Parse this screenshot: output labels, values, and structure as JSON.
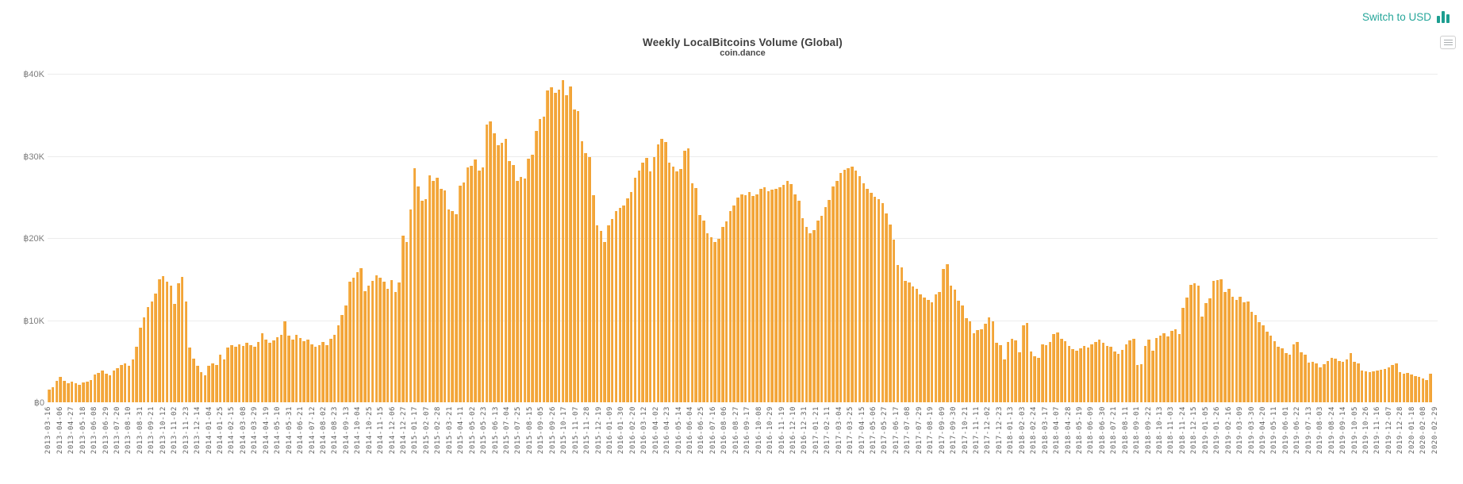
{
  "header": {
    "title": "Weekly LocalBitcoins Volume (Global)",
    "subtitle": "coin.dance",
    "switch_link_label": "Switch to USD"
  },
  "colors": {
    "accent_teal": "#26a69a",
    "bar_orange": "#f4a63a",
    "gridline": "#ececec",
    "title_text": "#3e3e3e",
    "axis_text": "#6b6b6b"
  },
  "icons": {
    "switch_link_icon": "bar-chart-icon",
    "context_menu_icon": "hamburger-menu-icon"
  },
  "chart_data": {
    "type": "bar",
    "title": "Weekly LocalBitcoins Volume (Global)",
    "subtitle": "coin.dance",
    "xlabel": "",
    "ylabel": "",
    "ylim": [
      0,
      40000
    ],
    "grid": "horizontal",
    "legend": "none",
    "currency_symbol": "฿",
    "y_tick_values": [
      0,
      10000,
      20000,
      30000,
      40000
    ],
    "y_tick_labels": [
      "฿0",
      "฿10K",
      "฿20K",
      "฿30K",
      "฿40K"
    ],
    "x_tick_every_n_bars": 3,
    "x_tick_labels": [
      "2013-03-16",
      "2013-04-06",
      "2013-04-27",
      "2013-05-18",
      "2013-06-08",
      "2013-06-29",
      "2013-07-20",
      "2013-08-10",
      "2013-08-31",
      "2013-09-21",
      "2013-10-12",
      "2013-11-02",
      "2013-11-23",
      "2013-12-14",
      "2014-01-04",
      "2014-01-25",
      "2014-02-15",
      "2014-03-08",
      "2014-03-29",
      "2014-04-19",
      "2014-05-10",
      "2014-05-31",
      "2014-06-21",
      "2014-07-12",
      "2014-08-02",
      "2014-08-23",
      "2014-09-13",
      "2014-10-04",
      "2014-10-25",
      "2014-11-15",
      "2014-12-06",
      "2014-12-27",
      "2015-01-17",
      "2015-02-07",
      "2015-02-28",
      "2015-03-21",
      "2015-04-11",
      "2015-05-02",
      "2015-05-23",
      "2015-06-13",
      "2015-07-04",
      "2015-07-25",
      "2015-08-15",
      "2015-09-05",
      "2015-09-26",
      "2015-10-17",
      "2015-11-07",
      "2015-11-28",
      "2015-12-19",
      "2016-01-09",
      "2016-01-30",
      "2016-02-20",
      "2016-03-12",
      "2016-04-02",
      "2016-04-23",
      "2016-05-14",
      "2016-06-04",
      "2016-06-25",
      "2016-07-16",
      "2016-08-06",
      "2016-08-27",
      "2016-09-17",
      "2016-10-08",
      "2016-10-29",
      "2016-11-19",
      "2016-12-10",
      "2016-12-31",
      "2017-01-21",
      "2017-02-11",
      "2017-03-04",
      "2017-03-25",
      "2017-04-15",
      "2017-05-06",
      "2017-05-27",
      "2017-06-17",
      "2017-07-08",
      "2017-07-29",
      "2017-08-19",
      "2017-09-09",
      "2017-09-30",
      "2017-10-21",
      "2017-11-11",
      "2017-12-02",
      "2017-12-23",
      "2018-01-13",
      "2018-02-03",
      "2018-02-24",
      "2018-03-17",
      "2018-04-07",
      "2018-04-28",
      "2018-05-19",
      "2018-06-09",
      "2018-06-30",
      "2018-07-21",
      "2018-08-11",
      "2018-09-01",
      "2018-09-22",
      "2018-10-13",
      "2018-11-03",
      "2018-11-24",
      "2018-12-15",
      "2019-01-05",
      "2019-01-26",
      "2019-02-16",
      "2019-03-09",
      "2019-03-30",
      "2019-04-20",
      "2019-05-11",
      "2019-06-01",
      "2019-06-22",
      "2019-07-13",
      "2019-08-03",
      "2019-08-24",
      "2019-09-14",
      "2019-10-05",
      "2019-10-26",
      "2019-11-16",
      "2019-12-07",
      "2019-12-28",
      "2020-01-18",
      "2020-02-08",
      "2020-02-29"
    ],
    "values_unit": "BTC per week",
    "values": [
      1500,
      1800,
      2600,
      3100,
      2600,
      2300,
      2500,
      2300,
      2100,
      2400,
      2500,
      2700,
      3400,
      3600,
      3900,
      3500,
      3300,
      3900,
      4200,
      4500,
      4700,
      4400,
      5200,
      6800,
      9100,
      10300,
      11600,
      12300,
      13200,
      15000,
      15400,
      14700,
      14200,
      12000,
      14500,
      15300,
      12300,
      6700,
      5300,
      4400,
      3700,
      3300,
      4400,
      4700,
      4500,
      5800,
      5200,
      6700,
      7000,
      6800,
      7100,
      6900,
      7200,
      7000,
      6800,
      7300,
      8400,
      7600,
      7200,
      7500,
      7900,
      8200,
      9900,
      8100,
      7600,
      8200,
      7800,
      7400,
      7600,
      7100,
      6800,
      7000,
      7300,
      7000,
      7700,
      8200,
      9400,
      10600,
      11800,
      14700,
      15200,
      15800,
      16300,
      13500,
      14200,
      14800,
      15500,
      15200,
      14700,
      13800,
      14900,
      13400,
      14600,
      20300,
      19500,
      23500,
      28500,
      26300,
      24500,
      24700,
      27600,
      27000,
      27300,
      26000,
      25800,
      23500,
      23300,
      22900,
      26400,
      26800,
      28600,
      28800,
      29600,
      28200,
      28600,
      33800,
      34200,
      32800,
      31300,
      31600,
      32100,
      29400,
      28900,
      27000,
      27400,
      27200,
      29700,
      30100,
      33000,
      34500,
      34800,
      38000,
      38400,
      37700,
      38100,
      39200,
      37400,
      38500,
      35700,
      35500,
      31800,
      30300,
      29900,
      25200,
      21500,
      20900,
      19500,
      21500,
      22300,
      23300,
      23700,
      24000,
      24800,
      25600,
      27300,
      28200,
      29200,
      29800,
      28100,
      29900,
      31400,
      32100,
      31700,
      29200,
      28700,
      28100,
      28400,
      30600,
      30900,
      26700,
      26100,
      22800,
      22100,
      20600,
      20100,
      19500,
      19900,
      21400,
      22000,
      23300,
      24000,
      24900,
      25300,
      25200,
      25600,
      25100,
      25300,
      26000,
      26200,
      25700,
      25900,
      26000,
      26200,
      26500,
      27000,
      26600,
      25300,
      24500,
      22400,
      21400,
      20600,
      21000,
      22100,
      22700,
      23800,
      24600,
      26300,
      27000,
      27900,
      28300,
      28500,
      28700,
      28200,
      27500,
      26700,
      26000,
      25500,
      25000,
      24700,
      24300,
      23000,
      21600,
      19800,
      16700,
      16400,
      14800,
      14600,
      14100,
      13800,
      13100,
      12800,
      12500,
      12200,
      13100,
      13400,
      16200,
      16800,
      14200,
      13700,
      12400,
      11800,
      10200,
      9900,
      8400,
      8800,
      8900,
      9600,
      10300,
      9900,
      7200,
      7000,
      5200,
      7300,
      7700,
      7500,
      6100,
      9400,
      9700,
      6200,
      5600,
      5400,
      7100,
      7000,
      7300,
      8300,
      8500,
      7700,
      7400,
      6900,
      6500,
      6300,
      6600,
      6900,
      6700,
      7100,
      7300,
      7600,
      7200,
      6900,
      6800,
      6200,
      5900,
      6400,
      7100,
      7500,
      7700,
      4500,
      4600,
      6900,
      7600,
      6300,
      7800,
      8100,
      8400,
      8000,
      8700,
      8900,
      8300,
      11500,
      12800,
      14300,
      14500,
      14200,
      10400,
      12100,
      12700,
      14800,
      14900,
      15000,
      13400,
      13800,
      12900,
      12500,
      12900,
      12200,
      12300,
      11000,
      10600,
      9800,
      9400,
      8600,
      8100,
      7400,
      6800,
      6600,
      6000,
      5800,
      7100,
      7300,
      6100,
      5800,
      4800,
      4900,
      4700,
      4300,
      4600,
      5000,
      5400,
      5300,
      5000,
      4900,
      5200,
      6000,
      4900,
      4700,
      3900,
      3800,
      3700,
      3800,
      3900,
      4000,
      4100,
      4300,
      4500,
      4700,
      3700,
      3500,
      3600,
      3400,
      3200,
      3100,
      2900,
      2700,
      3500
    ]
  }
}
